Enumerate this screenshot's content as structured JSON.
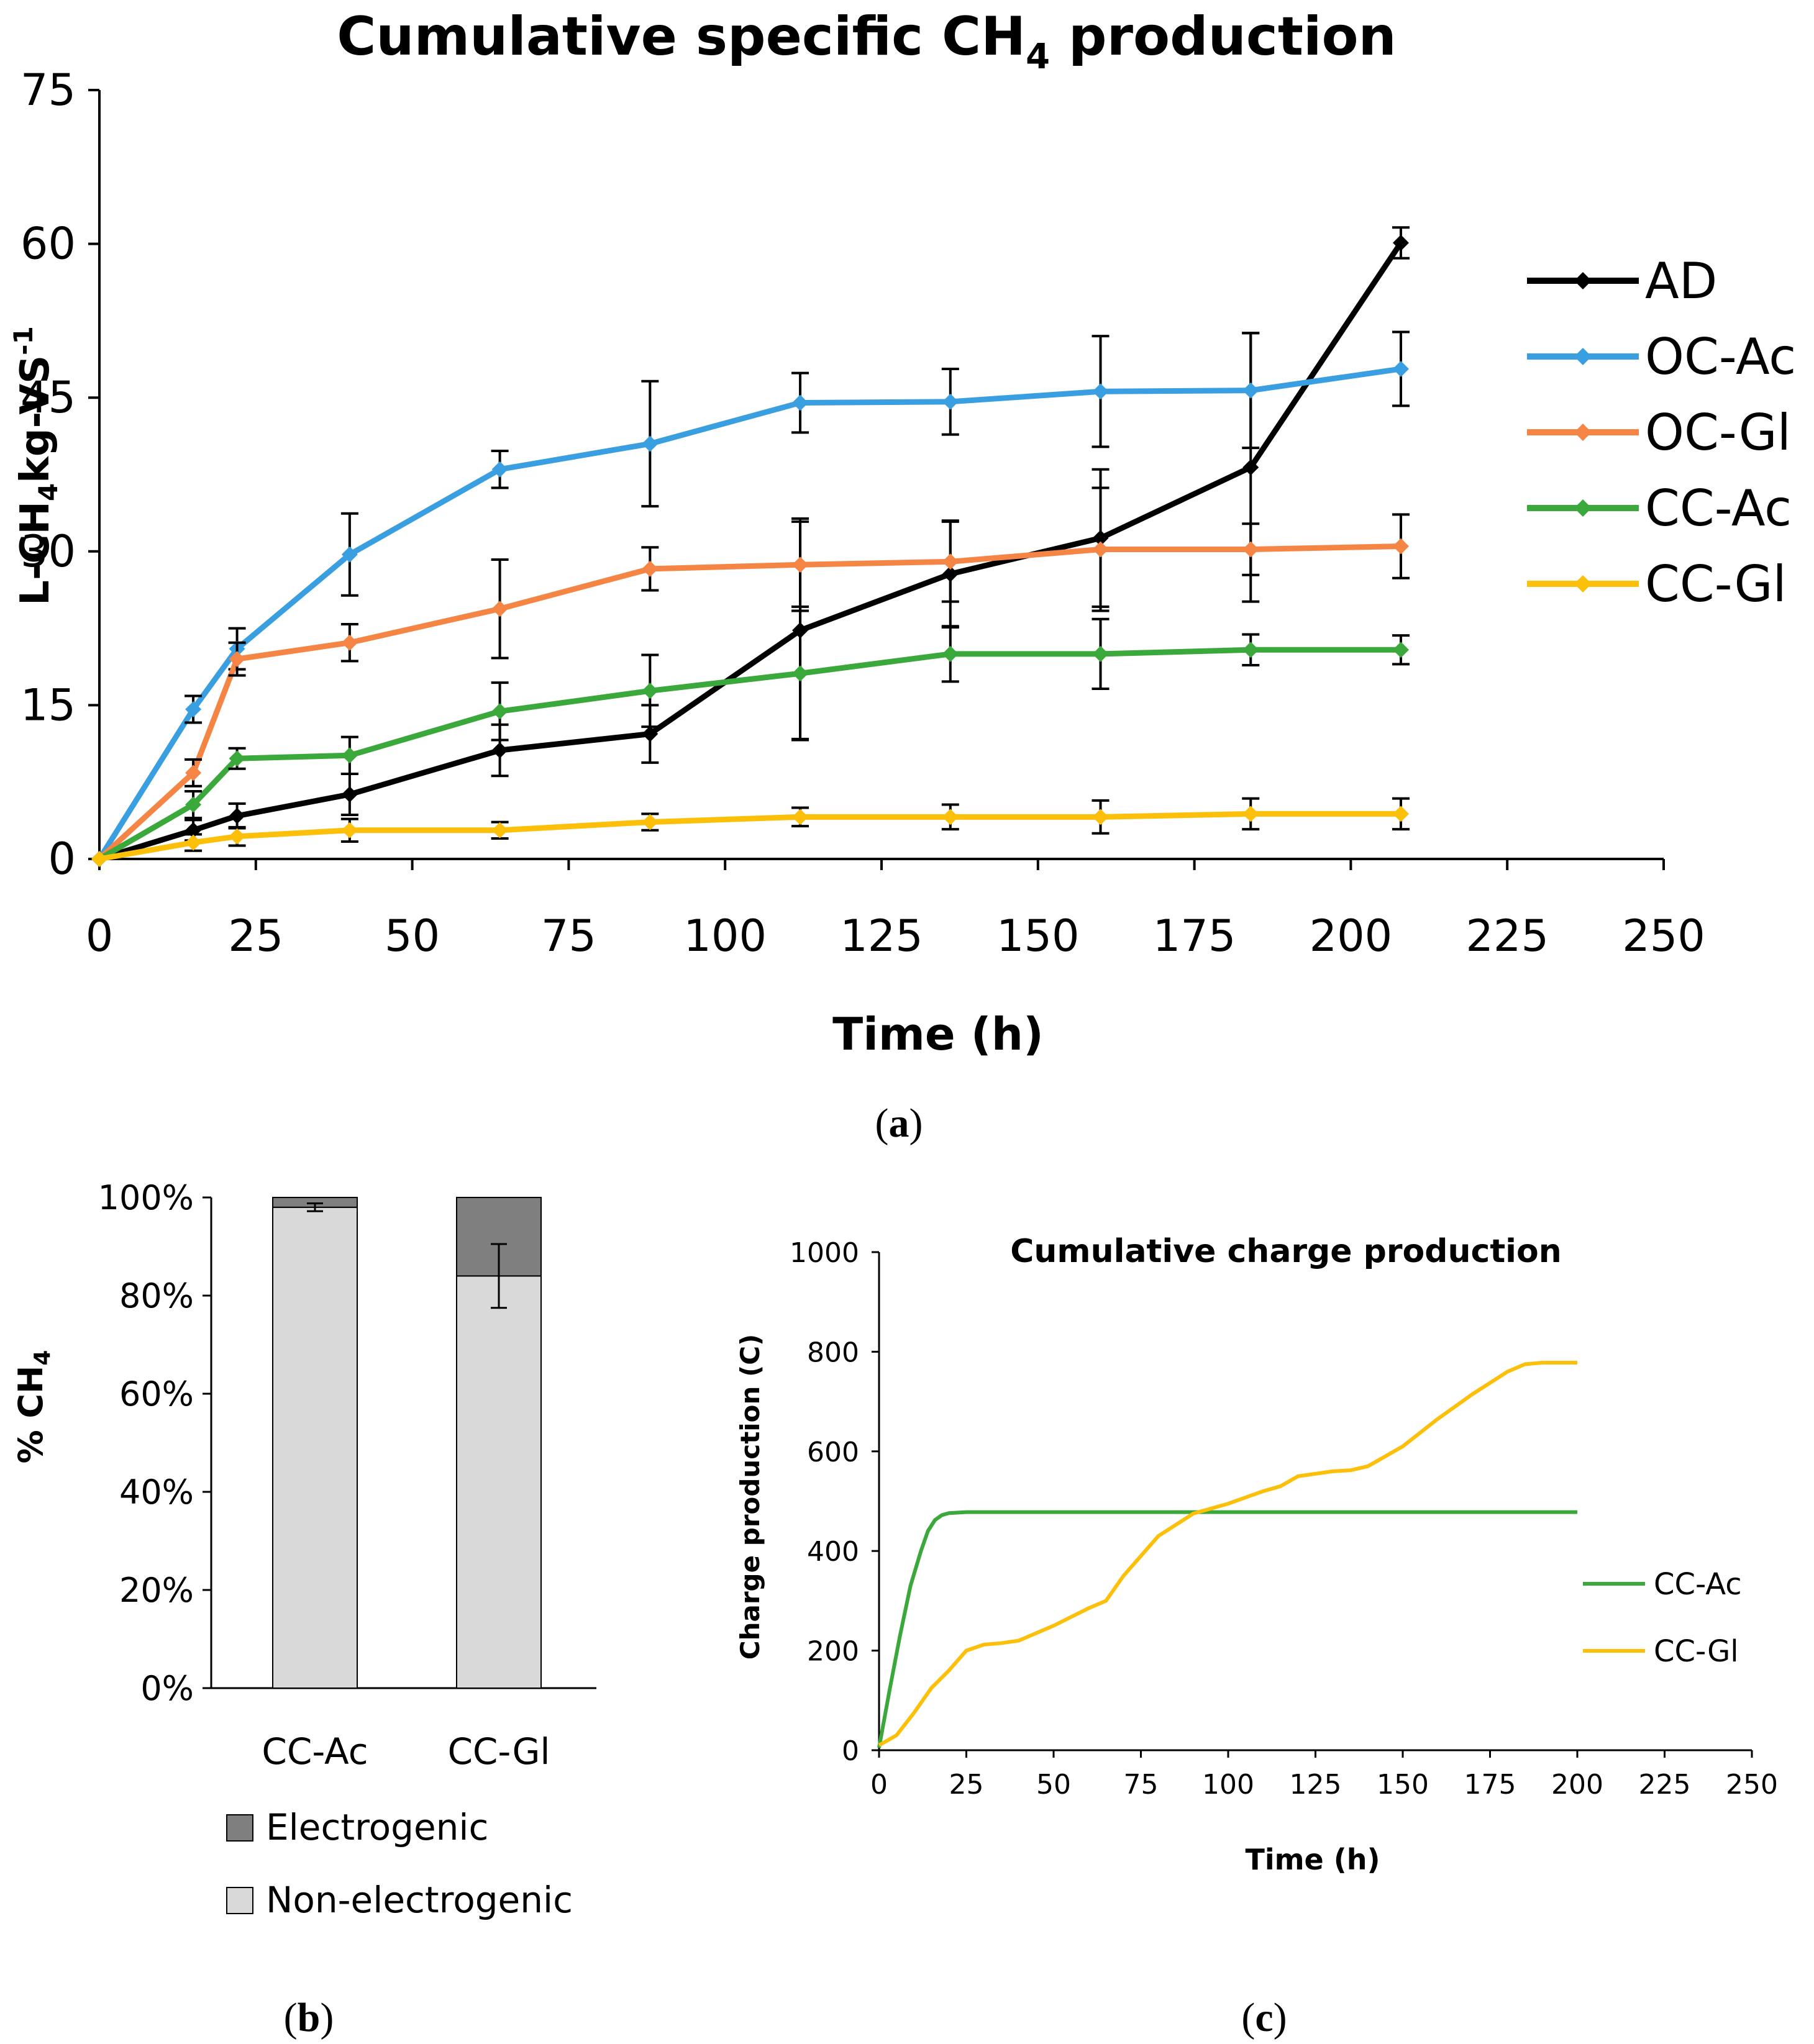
{
  "colors": {
    "AD": "#000000",
    "OC-Ac": "#3a9fe0",
    "OC-Gl": "#f58545",
    "CC-Ac": "#3aa83a",
    "CC-Gl": "#fcbf0a",
    "electrogenic": "#7f7f7f",
    "non_electrogenic": "#d9d9d9"
  },
  "panel_labels": {
    "a": "a",
    "b": "b",
    "c": "c"
  },
  "chart_data": [
    {
      "id": "a",
      "type": "line",
      "title_main": "Cumulative specific CH",
      "title_sub": "4",
      "title_end": " production",
      "xlabel": "Time (h)",
      "ylabel_parts": [
        "L-CH",
        "4",
        "kg-VS",
        "-1"
      ],
      "xlim": [
        0,
        250
      ],
      "ylim": [
        0,
        75
      ],
      "xticks": [
        0,
        25,
        50,
        75,
        100,
        125,
        150,
        175,
        200,
        225,
        250
      ],
      "yticks": [
        0,
        15,
        30,
        45,
        60,
        75
      ],
      "x": [
        0,
        15,
        22,
        40,
        64,
        88,
        112,
        136,
        160,
        184,
        208
      ],
      "series": [
        {
          "name": "AD",
          "values": [
            0,
            2.8,
            4.2,
            6.3,
            10.6,
            12.2,
            22.3,
            27.8,
            31.3,
            38.2,
            60.1
          ],
          "err": [
            0,
            1.0,
            1.2,
            2.0,
            2.5,
            2.8,
            10.6,
            5.2,
            6.7,
            13.1,
            1.5
          ]
        },
        {
          "name": "OC-Ac",
          "values": [
            0,
            14.6,
            20.5,
            29.7,
            38.0,
            40.5,
            44.5,
            44.6,
            45.6,
            45.7,
            47.8
          ],
          "err": [
            0,
            1.3,
            2.0,
            4.0,
            1.8,
            6.1,
            2.9,
            3.2,
            5.4,
            5.6,
            3.6
          ]
        },
        {
          "name": "OC-Gl",
          "values": [
            0,
            8.4,
            19.5,
            21.1,
            24.4,
            28.3,
            28.7,
            29.0,
            30.2,
            30.2,
            30.5
          ],
          "err": [
            0,
            1.3,
            1.6,
            1.8,
            4.8,
            2.1,
            4.5,
            3.9,
            6.0,
            2.5,
            3.1
          ]
        },
        {
          "name": "CC-Ac",
          "values": [
            0,
            5.3,
            9.8,
            10.1,
            14.4,
            16.4,
            18.1,
            20.0,
            20.0,
            20.4,
            20.4
          ],
          "err": [
            0,
            1.3,
            1.0,
            1.8,
            2.8,
            3.5,
            6.5,
            2.7,
            3.4,
            1.5,
            1.4
          ]
        },
        {
          "name": "CC-Gl",
          "values": [
            0,
            1.6,
            2.2,
            2.8,
            2.8,
            3.6,
            4.1,
            4.1,
            4.1,
            4.4,
            4.4
          ],
          "err": [
            0,
            0.8,
            0.9,
            1.1,
            0.8,
            0.8,
            0.9,
            1.2,
            1.6,
            1.5,
            1.5
          ]
        }
      ],
      "legend": [
        "AD",
        "OC-Ac",
        "OC-Gl",
        "CC-Ac",
        "CC-Gl"
      ]
    },
    {
      "id": "b",
      "type": "bar",
      "stacked": true,
      "categories": [
        "CC-Ac",
        "CC-Gl"
      ],
      "ylabel_parts": [
        "% CH",
        "4"
      ],
      "ylim": [
        0,
        100
      ],
      "yticks": [
        "0%",
        "20%",
        "40%",
        "60%",
        "80%",
        "100%"
      ],
      "series": [
        {
          "name": "Non-electrogenic",
          "values": [
            98,
            84
          ]
        },
        {
          "name": "Electrogenic",
          "values": [
            2,
            16
          ]
        }
      ],
      "err": [
        0.8,
        6.5
      ],
      "legend": [
        "Electrogenic",
        "Non-electrogenic"
      ]
    },
    {
      "id": "c",
      "type": "line",
      "title": "Cumulative charge production",
      "xlabel": "Time (h)",
      "ylabel": "Charge production (C)",
      "xlim": [
        0,
        250
      ],
      "ylim": [
        0,
        1000
      ],
      "xticks": [
        0,
        25,
        50,
        75,
        100,
        125,
        150,
        175,
        200,
        225,
        250
      ],
      "yticks": [
        0,
        200,
        400,
        600,
        800,
        1000
      ],
      "series": [
        {
          "name": "CC-Ac",
          "x": [
            0,
            3,
            6,
            9,
            12,
            14,
            16,
            18,
            20,
            25,
            40,
            200
          ],
          "values": [
            5,
            120,
            230,
            330,
            400,
            440,
            462,
            472,
            476,
            478,
            478,
            478
          ]
        },
        {
          "name": "CC-Gl",
          "x": [
            0,
            5,
            10,
            15,
            20,
            25,
            30,
            35,
            40,
            50,
            60,
            65,
            70,
            80,
            90,
            100,
            110,
            115,
            120,
            125,
            130,
            135,
            140,
            150,
            160,
            170,
            180,
            185,
            190,
            200
          ],
          "values": [
            10,
            30,
            75,
            125,
            160,
            200,
            212,
            215,
            220,
            250,
            285,
            300,
            350,
            430,
            475,
            495,
            520,
            530,
            550,
            555,
            560,
            562,
            570,
            610,
            665,
            715,
            760,
            775,
            778,
            778
          ]
        }
      ],
      "legend": [
        "CC-Ac",
        "CC-Gl"
      ]
    }
  ]
}
